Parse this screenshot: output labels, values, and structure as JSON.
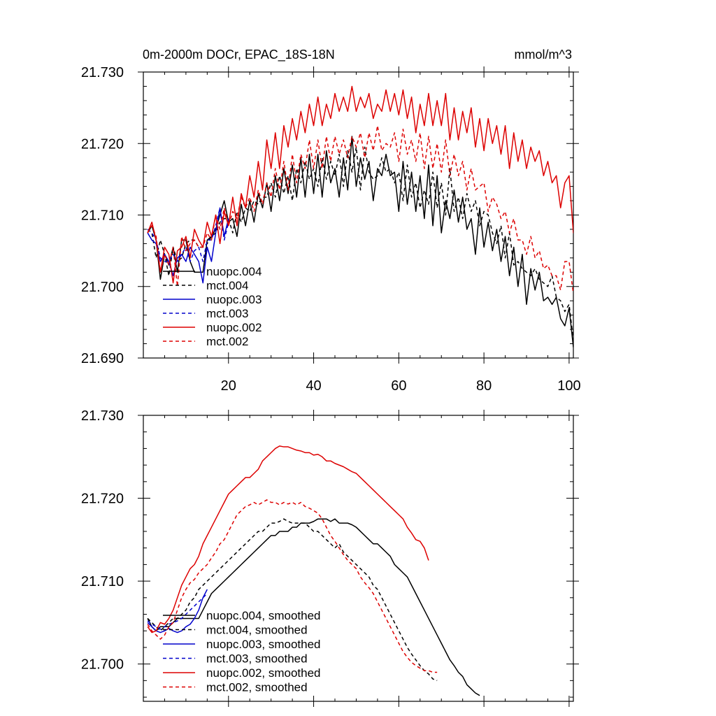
{
  "title_left": "0m-2000m DOCr, EPAC_18S-18N",
  "units": "mmol/m^3",
  "colors": {
    "black": "#000000",
    "blue": "#0000cc",
    "red": "#dd0000"
  },
  "chart_data": [
    {
      "id": "raw",
      "type": "line",
      "title": "0m-2000m DOCr, EPAC_18S-18N",
      "units": "mmol/m^3",
      "xlim": [
        0,
        101
      ],
      "ylim": [
        21.69,
        21.73
      ],
      "xticks": [
        "20",
        "40",
        "60",
        "80",
        "100"
      ],
      "yticks": [
        "21.730",
        "21.720",
        "21.710",
        "21.700",
        "21.690"
      ],
      "x_tick_values": [
        20,
        40,
        60,
        80,
        100
      ],
      "y_tick_values": [
        21.73,
        21.72,
        21.71,
        21.7,
        21.69
      ],
      "legend": [
        "nuopc.004",
        "mct.004",
        "nuopc.003",
        "mct.003",
        "nuopc.002",
        "mct.002"
      ],
      "series": [
        {
          "name": "nuopc.004",
          "color": "black",
          "dash": "solid",
          "x_start": 1,
          "values": [
            21.7075,
            21.7085,
            21.7065,
            21.701,
            21.7045,
            21.703,
            21.7055,
            21.702,
            21.7065,
            21.7065,
            21.7035,
            21.702,
            21.702,
            21.702,
            21.7065,
            21.707,
            21.708,
            21.71,
            21.712,
            21.709,
            21.7095,
            21.707,
            21.7115,
            21.7085,
            21.712,
            21.709,
            21.713,
            21.711,
            21.7145,
            21.7105,
            21.7155,
            21.712,
            21.7165,
            21.713,
            21.717,
            21.7125,
            21.718,
            21.7125,
            21.7185,
            21.713,
            21.7185,
            21.7125,
            21.719,
            21.7145,
            21.7165,
            21.7125,
            21.718,
            21.7135,
            21.721,
            21.714,
            21.718,
            21.715,
            21.7175,
            21.712,
            21.7165,
            21.7155,
            21.7185,
            21.7155,
            21.716,
            21.7105,
            21.7175,
            21.7115,
            21.716,
            21.7105,
            21.7155,
            21.7095,
            21.717,
            21.7085,
            21.7155,
            21.7075,
            21.712,
            21.7095,
            21.7135,
            21.709,
            21.7125,
            21.708,
            21.7095,
            21.7045,
            21.711,
            21.7055,
            21.709,
            21.705,
            21.708,
            21.7035,
            21.707,
            21.7015,
            21.7055,
            21.7,
            21.7045,
            21.6975,
            21.7025,
            21.6995,
            21.702,
            21.698,
            21.6985,
            21.6975,
            21.6985,
            21.6955,
            21.6945,
            21.697,
            21.6915
          ]
        },
        {
          "name": "mct.004",
          "color": "black",
          "dash": "dashed",
          "x_start": 1,
          "values": [
            21.708,
            21.7075,
            21.704,
            21.7065,
            21.7045,
            21.7015,
            21.7055,
            21.7035,
            21.704,
            21.706,
            21.7065,
            21.7065,
            21.7055,
            21.7055,
            21.706,
            21.707,
            21.7075,
            21.709,
            21.7095,
            21.7095,
            21.7075,
            21.7105,
            21.709,
            21.711,
            21.7105,
            21.712,
            21.7115,
            21.7125,
            21.7125,
            21.7145,
            21.7125,
            21.7155,
            21.713,
            21.7155,
            21.712,
            21.7165,
            21.7145,
            21.7175,
            21.715,
            21.7165,
            21.714,
            21.718,
            21.715,
            21.7175,
            21.7155,
            21.7185,
            21.714,
            21.719,
            21.716,
            21.7195,
            21.7135,
            21.7195,
            21.716,
            21.715,
            21.7155,
            21.718,
            21.716,
            21.7165,
            21.7145,
            21.716,
            21.712,
            21.717,
            21.7125,
            21.7145,
            21.711,
            21.7135,
            21.7115,
            21.716,
            21.711,
            21.7145,
            21.71,
            21.7165,
            21.7105,
            21.7125,
            21.7095,
            21.713,
            21.7105,
            21.712,
            21.7085,
            21.7105,
            21.71,
            21.7075,
            21.706,
            21.7085,
            21.704,
            21.7075,
            21.703,
            21.7035,
            21.7025,
            21.702,
            21.7015,
            21.7025,
            21.701,
            21.7005,
            21.7,
            21.7015,
            21.6985,
            21.698,
            21.6965,
            21.6975,
            21.6925
          ]
        },
        {
          "name": "nuopc.003",
          "color": "blue",
          "dash": "solid",
          "x_start": 1,
          "values": [
            21.7075,
            21.7065,
            21.706,
            21.7035,
            21.7045,
            21.7035,
            21.7015,
            21.704,
            21.7045,
            21.7035,
            21.7055,
            21.7045,
            21.7035,
            21.7005,
            21.7055,
            21.7035,
            21.7075,
            21.711,
            21.707,
            21.7095
          ]
        },
        {
          "name": "mct.003",
          "color": "blue",
          "dash": "dashed",
          "x_start": 1,
          "values": [
            21.708,
            21.7075,
            21.7065,
            21.704,
            21.7035,
            21.7035,
            21.7045,
            21.7035,
            21.7045,
            21.7055,
            21.7035,
            21.705,
            21.7055,
            21.7035,
            21.7065,
            21.7065,
            21.7085,
            21.711,
            21.7065,
            21.709
          ]
        },
        {
          "name": "nuopc.002",
          "color": "red",
          "dash": "solid",
          "x_start": 1,
          "values": [
            21.7075,
            21.709,
            21.7065,
            21.702,
            21.7055,
            21.7045,
            21.7005,
            21.705,
            21.7055,
            21.707,
            21.704,
            21.708,
            21.7065,
            21.7055,
            21.709,
            21.707,
            21.71,
            21.706,
            21.7105,
            21.7085,
            21.7125,
            21.7085,
            21.713,
            21.711,
            21.7155,
            21.7125,
            21.7175,
            21.7135,
            21.7205,
            21.7165,
            21.7215,
            21.7165,
            21.7225,
            21.7195,
            21.7235,
            21.7205,
            21.7245,
            21.7215,
            21.7255,
            21.7225,
            21.7265,
            21.7225,
            21.7255,
            21.7235,
            21.727,
            21.7245,
            21.7265,
            21.7245,
            21.728,
            21.7245,
            21.7265,
            21.725,
            21.727,
            21.7235,
            21.7255,
            21.7245,
            21.7275,
            21.7245,
            21.727,
            21.724,
            21.7275,
            21.7235,
            21.7265,
            21.7215,
            21.7255,
            21.7225,
            21.727,
            21.7225,
            21.726,
            21.7225,
            21.727,
            21.7205,
            21.725,
            21.7205,
            21.7245,
            21.7215,
            21.725,
            21.7195,
            21.7235,
            21.719,
            21.7235,
            21.72,
            21.7225,
            21.7185,
            21.7225,
            21.7165,
            21.7215,
            21.7175,
            21.7205,
            21.7165,
            21.7195,
            21.7175,
            21.719,
            21.7155,
            21.7175,
            21.7145,
            21.7155,
            21.711,
            21.7145,
            21.7155,
            21.7075,
            21.7105
          ]
        },
        {
          "name": "mct.002",
          "color": "red",
          "dash": "dashed",
          "x_start": 1,
          "values": [
            21.7075,
            21.7085,
            21.707,
            21.702,
            21.7045,
            21.703,
            21.7055,
            21.7,
            21.707,
            21.705,
            21.706,
            21.7065,
            21.7055,
            21.7055,
            21.7075,
            21.7065,
            21.71,
            21.708,
            21.711,
            21.7085,
            21.7105,
            21.7095,
            21.7125,
            21.711,
            21.7125,
            21.7105,
            21.7135,
            21.7115,
            21.7145,
            21.7125,
            21.7165,
            21.7135,
            21.7175,
            21.7135,
            21.7185,
            21.7145,
            21.7185,
            21.7165,
            21.7205,
            21.7165,
            21.7205,
            21.7165,
            21.721,
            21.7175,
            21.721,
            21.7185,
            21.7205,
            21.718,
            21.721,
            21.7195,
            21.7215,
            21.718,
            21.7215,
            21.719,
            21.7225,
            21.719,
            21.72,
            21.7195,
            21.7215,
            21.7175,
            21.722,
            21.7185,
            21.7205,
            21.7175,
            21.7215,
            21.7165,
            21.721,
            21.7165,
            21.72,
            21.716,
            21.7205,
            21.7155,
            21.7185,
            21.7155,
            21.7175,
            21.7135,
            21.7165,
            21.7135,
            21.714,
            21.7145,
            21.7105,
            21.7125,
            21.7115,
            21.7095,
            21.7105,
            21.7075,
            21.7095,
            21.7065,
            21.7065,
            21.7045,
            21.707,
            21.704,
            21.705,
            21.7025,
            21.703,
            21.7015,
            21.7015,
            21.6995,
            21.7035,
            21.7035,
            21.699
          ]
        }
      ]
    },
    {
      "id": "smoothed",
      "type": "line",
      "xlim": [
        0,
        101
      ],
      "ylim": [
        21.6955,
        21.73
      ],
      "xticks": [],
      "yticks": [
        "21.730",
        "21.720",
        "21.710",
        "21.700"
      ],
      "x_tick_values": [
        20,
        40,
        60,
        80,
        100
      ],
      "y_tick_values": [
        21.73,
        21.72,
        21.71,
        21.7
      ],
      "legend": [
        "nuopc.004, smoothed",
        "mct.004, smoothed",
        "nuopc.003, smoothed",
        "mct.003, smoothed",
        "nuopc.002, smoothed",
        "mct.002, smoothed"
      ],
      "series": [
        {
          "name": "nuopc.004, smoothed",
          "color": "black",
          "dash": "solid",
          "x_start": 1,
          "values": [
            21.7055,
            21.7045,
            21.704,
            21.7045,
            21.7045,
            21.7045,
            21.705,
            21.7055,
            21.7055,
            21.7055,
            21.7055,
            21.7055,
            21.7055,
            21.7065,
            21.7075,
            21.7085,
            21.709,
            21.7095,
            21.71,
            21.7105,
            21.711,
            21.7115,
            21.712,
            21.7125,
            21.713,
            21.7135,
            21.714,
            21.7145,
            21.715,
            21.7155,
            21.7155,
            21.716,
            21.716,
            21.716,
            21.7165,
            21.7165,
            21.717,
            21.717,
            21.717,
            21.7172,
            21.7175,
            21.7175,
            21.7175,
            21.7172,
            21.7175,
            21.717,
            21.717,
            21.717,
            21.7168,
            21.7165,
            21.716,
            21.7155,
            21.715,
            21.7145,
            21.7145,
            21.714,
            21.7135,
            21.713,
            21.712,
            21.7115,
            21.711,
            21.7105,
            21.7095,
            21.7085,
            21.7075,
            21.7065,
            21.7055,
            21.7045,
            21.7035,
            21.7025,
            21.7015,
            21.7005,
            21.6998,
            21.699,
            21.6985,
            21.6975,
            21.697,
            21.6965,
            21.6962
          ]
        },
        {
          "name": "mct.004, smoothed",
          "color": "black",
          "dash": "dashed",
          "x_start": 1,
          "values": [
            21.7055,
            21.705,
            21.7045,
            21.704,
            21.7045,
            21.705,
            21.7055,
            21.7055,
            21.706,
            21.7065,
            21.7075,
            21.708,
            21.709,
            21.7095,
            21.71,
            21.7105,
            21.711,
            21.7115,
            21.712,
            21.7125,
            21.713,
            21.7135,
            21.714,
            21.7145,
            21.715,
            21.7155,
            21.716,
            21.716,
            21.7165,
            21.717,
            21.717,
            21.7172,
            21.7175,
            21.7172,
            21.717,
            21.717,
            21.717,
            21.717,
            21.7165,
            21.716,
            21.716,
            21.7155,
            21.715,
            21.7145,
            21.714,
            21.7145,
            21.7135,
            21.713,
            21.7125,
            21.712,
            21.7115,
            21.711,
            21.7105,
            21.7095,
            21.709,
            21.708,
            21.707,
            21.706,
            21.705,
            21.704,
            21.703,
            21.702,
            21.7012,
            21.7005,
            21.6998,
            21.6992,
            21.6988,
            21.6982,
            21.698
          ]
        },
        {
          "name": "nuopc.003, smoothed",
          "color": "blue",
          "dash": "solid",
          "x_start": 1,
          "values": [
            21.705,
            21.7045,
            21.704,
            21.7038,
            21.704,
            21.7043,
            21.704,
            21.7038,
            21.704,
            21.7045,
            21.7048,
            21.7055,
            21.7065,
            21.708,
            21.709
          ]
        },
        {
          "name": "mct.003, smoothed",
          "color": "blue",
          "dash": "dashed",
          "x_start": 1,
          "values": [
            21.7052,
            21.7048,
            21.7045,
            21.7042,
            21.7045,
            21.7048,
            21.705,
            21.7052,
            21.7055,
            21.706,
            21.7065,
            21.707,
            21.7075,
            21.708,
            21.7085
          ]
        },
        {
          "name": "nuopc.002, smoothed",
          "color": "red",
          "dash": "solid",
          "x_start": 1,
          "values": [
            21.7045,
            21.7038,
            21.704,
            21.705,
            21.7048,
            21.7055,
            21.7065,
            21.708,
            21.7095,
            21.7105,
            21.7115,
            21.712,
            21.713,
            21.7145,
            21.7155,
            21.7165,
            21.7175,
            21.7185,
            21.7195,
            21.7205,
            21.721,
            21.7215,
            21.722,
            21.7225,
            21.7225,
            21.723,
            21.7235,
            21.7245,
            21.725,
            21.7255,
            21.726,
            21.7263,
            21.7262,
            21.7262,
            21.726,
            21.7258,
            21.7257,
            21.7255,
            21.7255,
            21.7252,
            21.7253,
            21.725,
            21.7245,
            21.7245,
            21.7242,
            21.724,
            21.7238,
            21.7235,
            21.7232,
            21.723,
            21.7225,
            21.722,
            21.7215,
            21.721,
            21.7205,
            21.72,
            21.7195,
            21.719,
            21.7185,
            21.718,
            21.7175,
            21.7165,
            21.7158,
            21.715,
            21.7148,
            21.714,
            21.7125
          ]
        },
        {
          "name": "mct.002, smoothed",
          "color": "red",
          "dash": "dashed",
          "x_start": 1,
          "values": [
            21.7048,
            21.704,
            21.7035,
            21.703,
            21.7035,
            21.7045,
            21.705,
            21.7065,
            21.708,
            21.709,
            21.7098,
            21.7102,
            21.711,
            21.7115,
            21.712,
            21.7128,
            21.7135,
            21.7145,
            21.715,
            21.716,
            21.717,
            21.718,
            21.7185,
            21.719,
            21.7192,
            21.7195,
            21.7192,
            21.7195,
            21.7198,
            21.7195,
            21.7195,
            21.7192,
            21.7195,
            21.7193,
            21.7195,
            21.7192,
            21.7195,
            21.719,
            21.7188,
            21.7185,
            21.7182,
            21.7175,
            21.7165,
            21.7155,
            21.7148,
            21.714,
            21.7132,
            21.7125,
            21.712,
            21.7115,
            21.7105,
            21.7098,
            21.7092,
            21.7085,
            21.7075,
            21.7065,
            21.7055,
            21.7045,
            21.7035,
            21.7025,
            21.7015,
            21.7008,
            21.7002,
            21.6998,
            21.6995,
            21.6992,
            21.6992,
            21.699,
            21.699
          ]
        }
      ]
    }
  ]
}
